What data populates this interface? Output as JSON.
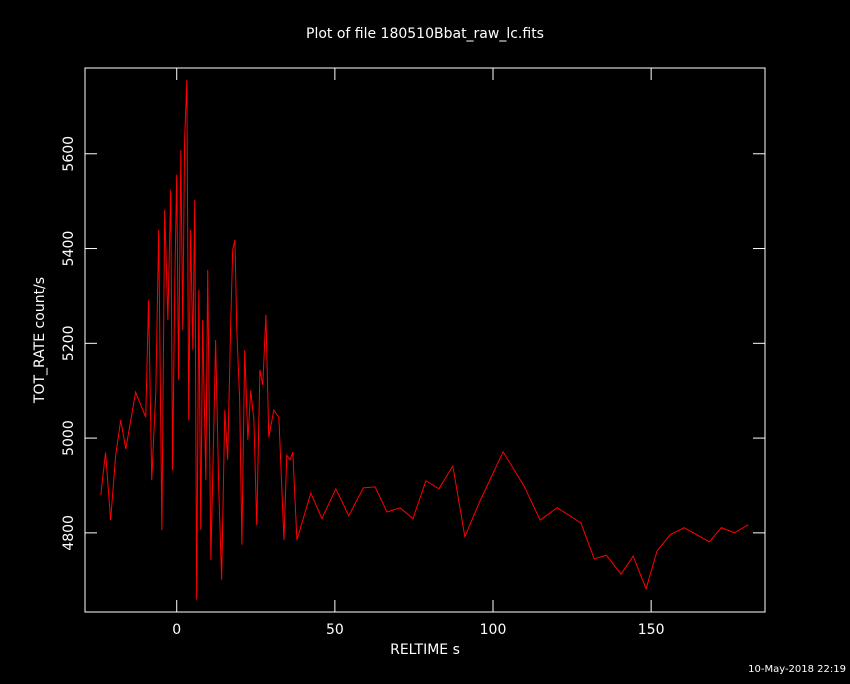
{
  "chart_data": {
    "type": "line",
    "title": "Plot of file 180510Bbat_raw_lc.fits",
    "xlabel": "RELTIME  s",
    "ylabel": "TOT_RATE  count/s",
    "timestamp": "10-May-2018 22:19",
    "color": "#ff0000",
    "xlim": [
      -29,
      186
    ],
    "ylim": [
      4633,
      5781
    ],
    "xticks": [
      0,
      50,
      100,
      150
    ],
    "yticks": [
      4800,
      5000,
      5200,
      5400,
      5600
    ],
    "x": [
      -24,
      -22.5,
      -20.9,
      -19.3,
      -17.7,
      -16.1,
      -13,
      -9.8,
      -8.9,
      -7.9,
      -6.6,
      -5.7,
      -4.7,
      -3.8,
      -2.8,
      -1.9,
      -1.3,
      -0.6,
      0,
      0.6,
      1.3,
      1.9,
      2.5,
      3.2,
      3.8,
      4.4,
      5.1,
      5.7,
      6.3,
      7,
      7.6,
      8.2,
      9.2,
      9.8,
      10.8,
      11.7,
      12.3,
      13.3,
      14.2,
      15.2,
      16.1,
      17.1,
      17.7,
      18.4,
      19,
      19.9,
      20.6,
      21.5,
      22.5,
      23.4,
      24.4,
      25.3,
      26.3,
      27.2,
      28.2,
      29.1,
      30.7,
      32.3,
      33.9,
      34.8,
      35.8,
      36.7,
      38,
      42.4,
      45.9,
      50.3,
      54.4,
      59,
      62.7,
      66.5,
      70.6,
      74.7,
      78.8,
      82.9,
      87.3,
      91.1,
      95.6,
      103.2,
      109.8,
      114.9,
      120.3,
      127.8,
      132,
      135.8,
      140.5,
      144.3,
      148.4,
      151.9,
      156,
      160.4,
      168.4,
      172.2,
      176.3,
      180.7
    ],
    "values": [
      4880,
      4970,
      4827,
      4964,
      5038,
      4977,
      5097,
      5044,
      5291,
      4911,
      5101,
      5439,
      4806,
      5482,
      5249,
      5524,
      4932,
      5334,
      5556,
      5123,
      5608,
      5228,
      5630,
      5756,
      5038,
      5439,
      5186,
      5503,
      4659,
      5313,
      4806,
      5249,
      4911,
      5355,
      4743,
      5017,
      5207,
      4890,
      4701,
      5059,
      4954,
      5249,
      5397,
      5418,
      5228,
      5080,
      4775,
      5186,
      4996,
      5101,
      5038,
      4816,
      5144,
      5112,
      5260,
      5002,
      5059,
      5044,
      4785,
      4964,
      4954,
      4970,
      4785,
      4884,
      4830,
      4893,
      4836,
      4895,
      4897,
      4844,
      4853,
      4830,
      4910,
      4893,
      4941,
      4792,
      4863,
      4971,
      4899,
      4827,
      4853,
      4821,
      4745,
      4753,
      4713,
      4751,
      4682,
      4762,
      4796,
      4811,
      4781,
      4811,
      4800,
      4817
    ]
  }
}
